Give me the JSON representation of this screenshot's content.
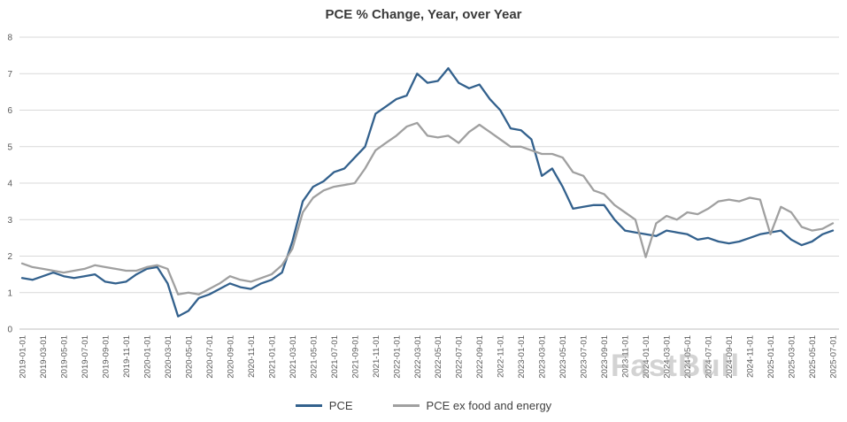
{
  "watermark": "FastBull",
  "colors": {
    "grid_line": "#d9d9d9",
    "axis_line": "#bfbfbf",
    "axis_text": "#595959",
    "pce_line": "#33618d",
    "core_line": "#a0a0a0"
  },
  "chart_data": {
    "type": "line",
    "title": "PCE % Change, Year, over Year",
    "xlabel": "",
    "ylabel": "",
    "ylim": [
      0,
      8
    ],
    "yticks": [
      0,
      1,
      2,
      3,
      4,
      5,
      6,
      7,
      8
    ],
    "grid": true,
    "legend_position": "bottom",
    "x": [
      "2019-01-01",
      "2019-02-01",
      "2019-03-01",
      "2019-04-01",
      "2019-05-01",
      "2019-06-01",
      "2019-07-01",
      "2019-08-01",
      "2019-09-01",
      "2019-10-01",
      "2019-11-01",
      "2019-12-01",
      "2020-01-01",
      "2020-02-01",
      "2020-03-01",
      "2020-04-01",
      "2020-05-01",
      "2020-06-01",
      "2020-07-01",
      "2020-08-01",
      "2020-09-01",
      "2020-10-01",
      "2020-11-01",
      "2020-12-01",
      "2021-01-01",
      "2021-02-01",
      "2021-03-01",
      "2021-04-01",
      "2021-05-01",
      "2021-06-01",
      "2021-07-01",
      "2021-08-01",
      "2021-09-01",
      "2021-10-01",
      "2021-11-01",
      "2021-12-01",
      "2022-01-01",
      "2022-02-01",
      "2022-03-01",
      "2022-04-01",
      "2022-05-01",
      "2022-06-01",
      "2022-07-01",
      "2022-08-01",
      "2022-09-01",
      "2022-10-01",
      "2022-11-01",
      "2022-12-01",
      "2023-01-01",
      "2023-02-01",
      "2023-03-01",
      "2023-04-01",
      "2023-05-01",
      "2023-06-01",
      "2023-07-01",
      "2023-08-01",
      "2023-09-01",
      "2023-10-01",
      "2023-11-01",
      "2023-12-01",
      "2024-01-01",
      "2024-02-01",
      "2024-03-01",
      "2024-04-01",
      "2024-05-01",
      "2024-06-01",
      "2024-07-01",
      "2024-08-01",
      "2024-09-01",
      "2024-10-01",
      "2024-11-01",
      "2024-12-01",
      "2025-01-01",
      "2025-02-01",
      "2025-03-01",
      "2025-04-01",
      "2025-05-01",
      "2025-06-01",
      "2025-07-01"
    ],
    "x_tick_labels": [
      "2019-01-01",
      "2019-03-01",
      "2019-05-01",
      "2019-07-01",
      "2019-09-01",
      "2019-11-01",
      "2020-01-01",
      "2020-03-01",
      "2020-05-01",
      "2020-07-01",
      "2020-09-01",
      "2020-11-01",
      "2021-01-01",
      "2021-03-01",
      "2021-05-01",
      "2021-07-01",
      "2021-09-01",
      "2021-11-01",
      "2022-01-01",
      "2022-03-01",
      "2022-05-01",
      "2022-07-01",
      "2022-09-01",
      "2022-11-01",
      "2023-01-01",
      "2023-03-01",
      "2023-05-01",
      "2023-07-01",
      "2023-09-01",
      "2023-11-01",
      "2024-01-01",
      "2024-03-01",
      "2024-05-01",
      "2024-07-01",
      "2024-09-01",
      "2024-11-01",
      "2025-01-01",
      "2025-03-01",
      "2025-05-01",
      "2025-07-01"
    ],
    "series": [
      {
        "name": "PCE",
        "color": "#33618d",
        "values": [
          1.4,
          1.35,
          1.45,
          1.55,
          1.45,
          1.4,
          1.45,
          1.5,
          1.3,
          1.25,
          1.3,
          1.5,
          1.65,
          1.7,
          1.25,
          0.35,
          0.5,
          0.85,
          0.95,
          1.1,
          1.25,
          1.15,
          1.1,
          1.25,
          1.35,
          1.55,
          2.4,
          3.5,
          3.9,
          4.05,
          4.3,
          4.4,
          4.7,
          5.0,
          5.9,
          6.1,
          6.3,
          6.4,
          7.0,
          6.75,
          6.8,
          7.15,
          6.75,
          6.6,
          6.7,
          6.3,
          6.0,
          5.5,
          5.45,
          5.2,
          4.2,
          4.4,
          3.9,
          3.3,
          3.35,
          3.4,
          3.4,
          3.0,
          2.7,
          2.65,
          2.6,
          2.55,
          2.7,
          2.65,
          2.6,
          2.45,
          2.5,
          2.4,
          2.35,
          2.4,
          2.5,
          2.6,
          2.65,
          2.7,
          2.45,
          2.3,
          2.4,
          2.6,
          2.7
        ]
      },
      {
        "name": "PCE ex food and energy",
        "color": "#a0a0a0",
        "values": [
          1.8,
          1.7,
          1.65,
          1.6,
          1.55,
          1.6,
          1.65,
          1.75,
          1.7,
          1.65,
          1.6,
          1.6,
          1.7,
          1.75,
          1.65,
          0.95,
          1.0,
          0.95,
          1.1,
          1.25,
          1.45,
          1.35,
          1.3,
          1.4,
          1.5,
          1.75,
          2.2,
          3.2,
          3.6,
          3.8,
          3.9,
          3.95,
          4.0,
          4.4,
          4.9,
          5.1,
          5.3,
          5.55,
          5.65,
          5.3,
          5.25,
          5.3,
          5.1,
          5.4,
          5.6,
          5.4,
          5.2,
          5.0,
          5.0,
          4.9,
          4.8,
          4.8,
          4.7,
          4.3,
          4.2,
          3.8,
          3.7,
          3.4,
          3.2,
          3.0,
          1.97,
          2.9,
          3.1,
          3.0,
          3.2,
          3.15,
          3.3,
          3.5,
          3.55,
          3.5,
          3.6,
          3.55,
          2.6,
          3.35,
          3.2,
          2.8,
          2.7,
          2.75,
          2.9
        ]
      }
    ]
  }
}
